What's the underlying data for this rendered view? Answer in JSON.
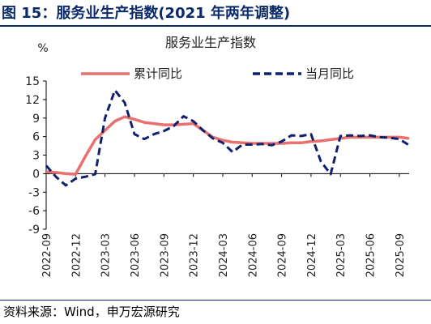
{
  "figure": {
    "title": "图 15：服务业生产指数(2021 年两年调整)",
    "source": "资料来源：Wind，申万宏源研究"
  },
  "colors": {
    "title": "#0b2a6b",
    "cumulative": "#e8706e",
    "monthly": "#10206e"
  },
  "chart_data": {
    "type": "line",
    "title": "服务业生产指数",
    "ylabel": "%",
    "ylim": [
      -9,
      15
    ],
    "yticks": [
      15,
      12,
      9,
      6,
      3,
      0,
      -3,
      -6,
      -9
    ],
    "x": [
      "2022-09",
      "2022-10",
      "2022-11",
      "2022-12",
      "2023-01",
      "2023-02",
      "2023-03",
      "2023-04",
      "2023-05",
      "2023-06",
      "2023-07",
      "2023-08",
      "2023-09",
      "2023-10",
      "2023-11",
      "2023-12",
      "2024-01",
      "2024-02",
      "2024-03",
      "2024-04",
      "2024-05",
      "2024-06",
      "2024-07",
      "2024-08",
      "2024-09",
      "2024-10",
      "2024-11",
      "2024-12",
      "2025-01",
      "2025-02",
      "2025-03",
      "2025-04",
      "2025-05",
      "2025-06",
      "2025-07",
      "2025-08",
      "2025-09",
      "2025-10"
    ],
    "xtick_labels": [
      "2022-09",
      "2022-12",
      "2023-03",
      "2023-06",
      "2023-09",
      "2023-12",
      "2024-03",
      "2024-06",
      "2024-09",
      "2024-12",
      "2025-03",
      "2025-06",
      "2025-09"
    ],
    "legend_position": "top",
    "grid": false,
    "series": [
      {
        "name": "累计同比",
        "style": "solid",
        "color": "#e8706e",
        "values": [
          0.3,
          0.2,
          0.0,
          -0.1,
          2.8,
          5.5,
          7.0,
          8.5,
          9.2,
          8.8,
          8.3,
          8.1,
          7.9,
          7.9,
          8.0,
          8.1,
          7.0,
          5.9,
          5.4,
          5.1,
          5.0,
          4.9,
          4.9,
          4.9,
          4.9,
          5.0,
          5.0,
          5.2,
          5.3,
          5.5,
          5.7,
          5.9,
          5.9,
          5.9,
          5.9,
          5.9,
          5.9,
          5.7
        ]
      },
      {
        "name": "当月同比",
        "style": "dashed",
        "color": "#10206e",
        "values": [
          1.3,
          -0.5,
          -1.9,
          -0.8,
          -0.5,
          -0.1,
          9.0,
          13.5,
          11.5,
          6.4,
          5.6,
          6.4,
          6.9,
          7.7,
          9.3,
          8.5,
          7.0,
          5.7,
          5.0,
          3.5,
          4.7,
          4.7,
          4.8,
          4.6,
          5.2,
          6.2,
          6.1,
          6.4,
          2.0,
          -0.1,
          6.1,
          6.2,
          6.1,
          6.2,
          5.9,
          5.8,
          5.6,
          4.6
        ]
      }
    ]
  }
}
